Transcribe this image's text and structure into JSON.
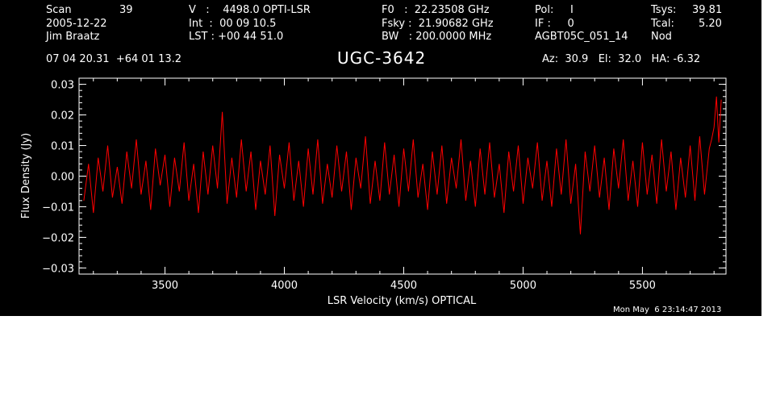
{
  "header": {
    "col1": {
      "labels": [
        "Scan",
        "2005-12-22",
        "Jim Braatz"
      ],
      "scan_value": "39"
    },
    "col2": {
      "lines": [
        "V   :    4498.0 OPTI-LSR",
        "Int  :  00 09 10.5",
        "LST : +00 44 51.0"
      ]
    },
    "col3": {
      "lines": [
        "F0   :  22.23508 GHz",
        "Fsky :  21.90682 GHz",
        "BW   : 200.0000 MHz"
      ]
    },
    "col4": {
      "lines": [
        "Pol:     I",
        "IF :     0",
        "AGBT05C_051_14"
      ]
    },
    "col5": {
      "labels": [
        "Tsys:",
        "Tcal:",
        "Nod"
      ],
      "values": [
        "39.81",
        "5.20",
        ""
      ]
    },
    "coords": "07 04 20.31  +64 01 13.2",
    "source": "UGC-3642",
    "azel": "Az:  30.9   El:  32.0   HA: -6.32",
    "datestamp": "Mon May  6 23:14:47 2013"
  },
  "colors": {
    "background": "#000000",
    "axes": "#ffffff",
    "trace": "#ff0000"
  },
  "chart_data": {
    "type": "line",
    "title": "UGC-3642",
    "xlabel": "LSR Velocity (km/s) OPTICAL",
    "ylabel": "Flux Density (Jy)",
    "xlim": [
      3140,
      5850
    ],
    "ylim": [
      -0.032,
      0.032
    ],
    "xticks": [
      3500,
      4000,
      4500,
      5000,
      5500
    ],
    "xtick_labels": [
      "3500",
      "4000",
      "4500",
      "5000",
      "5500"
    ],
    "yticks": [
      -0.03,
      -0.02,
      -0.01,
      0.0,
      0.01,
      0.02,
      0.03
    ],
    "ytick_labels": [
      "−0.03",
      "−0.02",
      "−0.01",
      "0.00",
      "0.01",
      "0.02",
      "0.03"
    ],
    "grid": false,
    "series": [
      {
        "color": "#ff0000",
        "x": [
          3160,
          3180,
          3200,
          3220,
          3240,
          3260,
          3280,
          3300,
          3320,
          3340,
          3360,
          3380,
          3400,
          3420,
          3440,
          3460,
          3480,
          3500,
          3520,
          3540,
          3560,
          3580,
          3600,
          3620,
          3640,
          3660,
          3680,
          3700,
          3720,
          3740,
          3760,
          3780,
          3800,
          3820,
          3840,
          3860,
          3880,
          3900,
          3920,
          3940,
          3960,
          3980,
          4000,
          4020,
          4040,
          4060,
          4080,
          4100,
          4120,
          4140,
          4160,
          4180,
          4200,
          4220,
          4240,
          4260,
          4280,
          4300,
          4320,
          4340,
          4360,
          4380,
          4400,
          4420,
          4440,
          4460,
          4480,
          4500,
          4520,
          4540,
          4560,
          4580,
          4600,
          4620,
          4640,
          4660,
          4680,
          4700,
          4720,
          4740,
          4760,
          4780,
          4800,
          4820,
          4840,
          4860,
          4880,
          4900,
          4920,
          4940,
          4960,
          4980,
          5000,
          5020,
          5040,
          5060,
          5080,
          5100,
          5120,
          5140,
          5160,
          5180,
          5200,
          5220,
          5240,
          5260,
          5280,
          5300,
          5320,
          5340,
          5360,
          5380,
          5400,
          5420,
          5440,
          5460,
          5480,
          5500,
          5520,
          5540,
          5560,
          5580,
          5600,
          5620,
          5640,
          5660,
          5680,
          5700,
          5720,
          5740,
          5760,
          5780,
          5790,
          5800,
          5810,
          5820,
          5830
        ],
        "y": [
          -0.008,
          0.004,
          -0.012,
          0.006,
          -0.005,
          0.01,
          -0.007,
          0.003,
          -0.009,
          0.008,
          -0.004,
          0.012,
          -0.006,
          0.005,
          -0.011,
          0.009,
          -0.003,
          0.007,
          -0.01,
          0.006,
          -0.005,
          0.011,
          -0.008,
          0.004,
          -0.012,
          0.008,
          -0.006,
          0.01,
          -0.004,
          0.021,
          -0.009,
          0.006,
          -0.007,
          0.012,
          -0.005,
          0.008,
          -0.011,
          0.005,
          -0.006,
          0.01,
          -0.013,
          0.007,
          -0.004,
          0.011,
          -0.008,
          0.005,
          -0.01,
          0.009,
          -0.006,
          0.012,
          -0.009,
          0.004,
          -0.007,
          0.01,
          -0.005,
          0.008,
          -0.011,
          0.006,
          -0.004,
          0.013,
          -0.009,
          0.005,
          -0.008,
          0.011,
          -0.006,
          0.007,
          -0.01,
          0.009,
          -0.005,
          0.012,
          -0.007,
          0.004,
          -0.011,
          0.008,
          -0.006,
          0.01,
          -0.009,
          0.006,
          -0.004,
          0.012,
          -0.008,
          0.005,
          -0.01,
          0.009,
          -0.006,
          0.011,
          -0.007,
          0.004,
          -0.012,
          0.008,
          -0.005,
          0.01,
          -0.009,
          0.006,
          -0.004,
          0.011,
          -0.008,
          0.005,
          -0.01,
          0.009,
          -0.006,
          0.012,
          -0.009,
          0.004,
          -0.019,
          0.008,
          -0.005,
          0.01,
          -0.007,
          0.006,
          -0.011,
          0.009,
          -0.004,
          0.012,
          -0.008,
          0.005,
          -0.01,
          0.011,
          -0.006,
          0.007,
          -0.009,
          0.012,
          -0.005,
          0.008,
          -0.011,
          0.006,
          -0.007,
          0.01,
          -0.008,
          0.013,
          -0.006,
          0.009,
          0.012,
          0.016,
          0.026,
          0.011,
          0.025
        ]
      }
    ]
  }
}
